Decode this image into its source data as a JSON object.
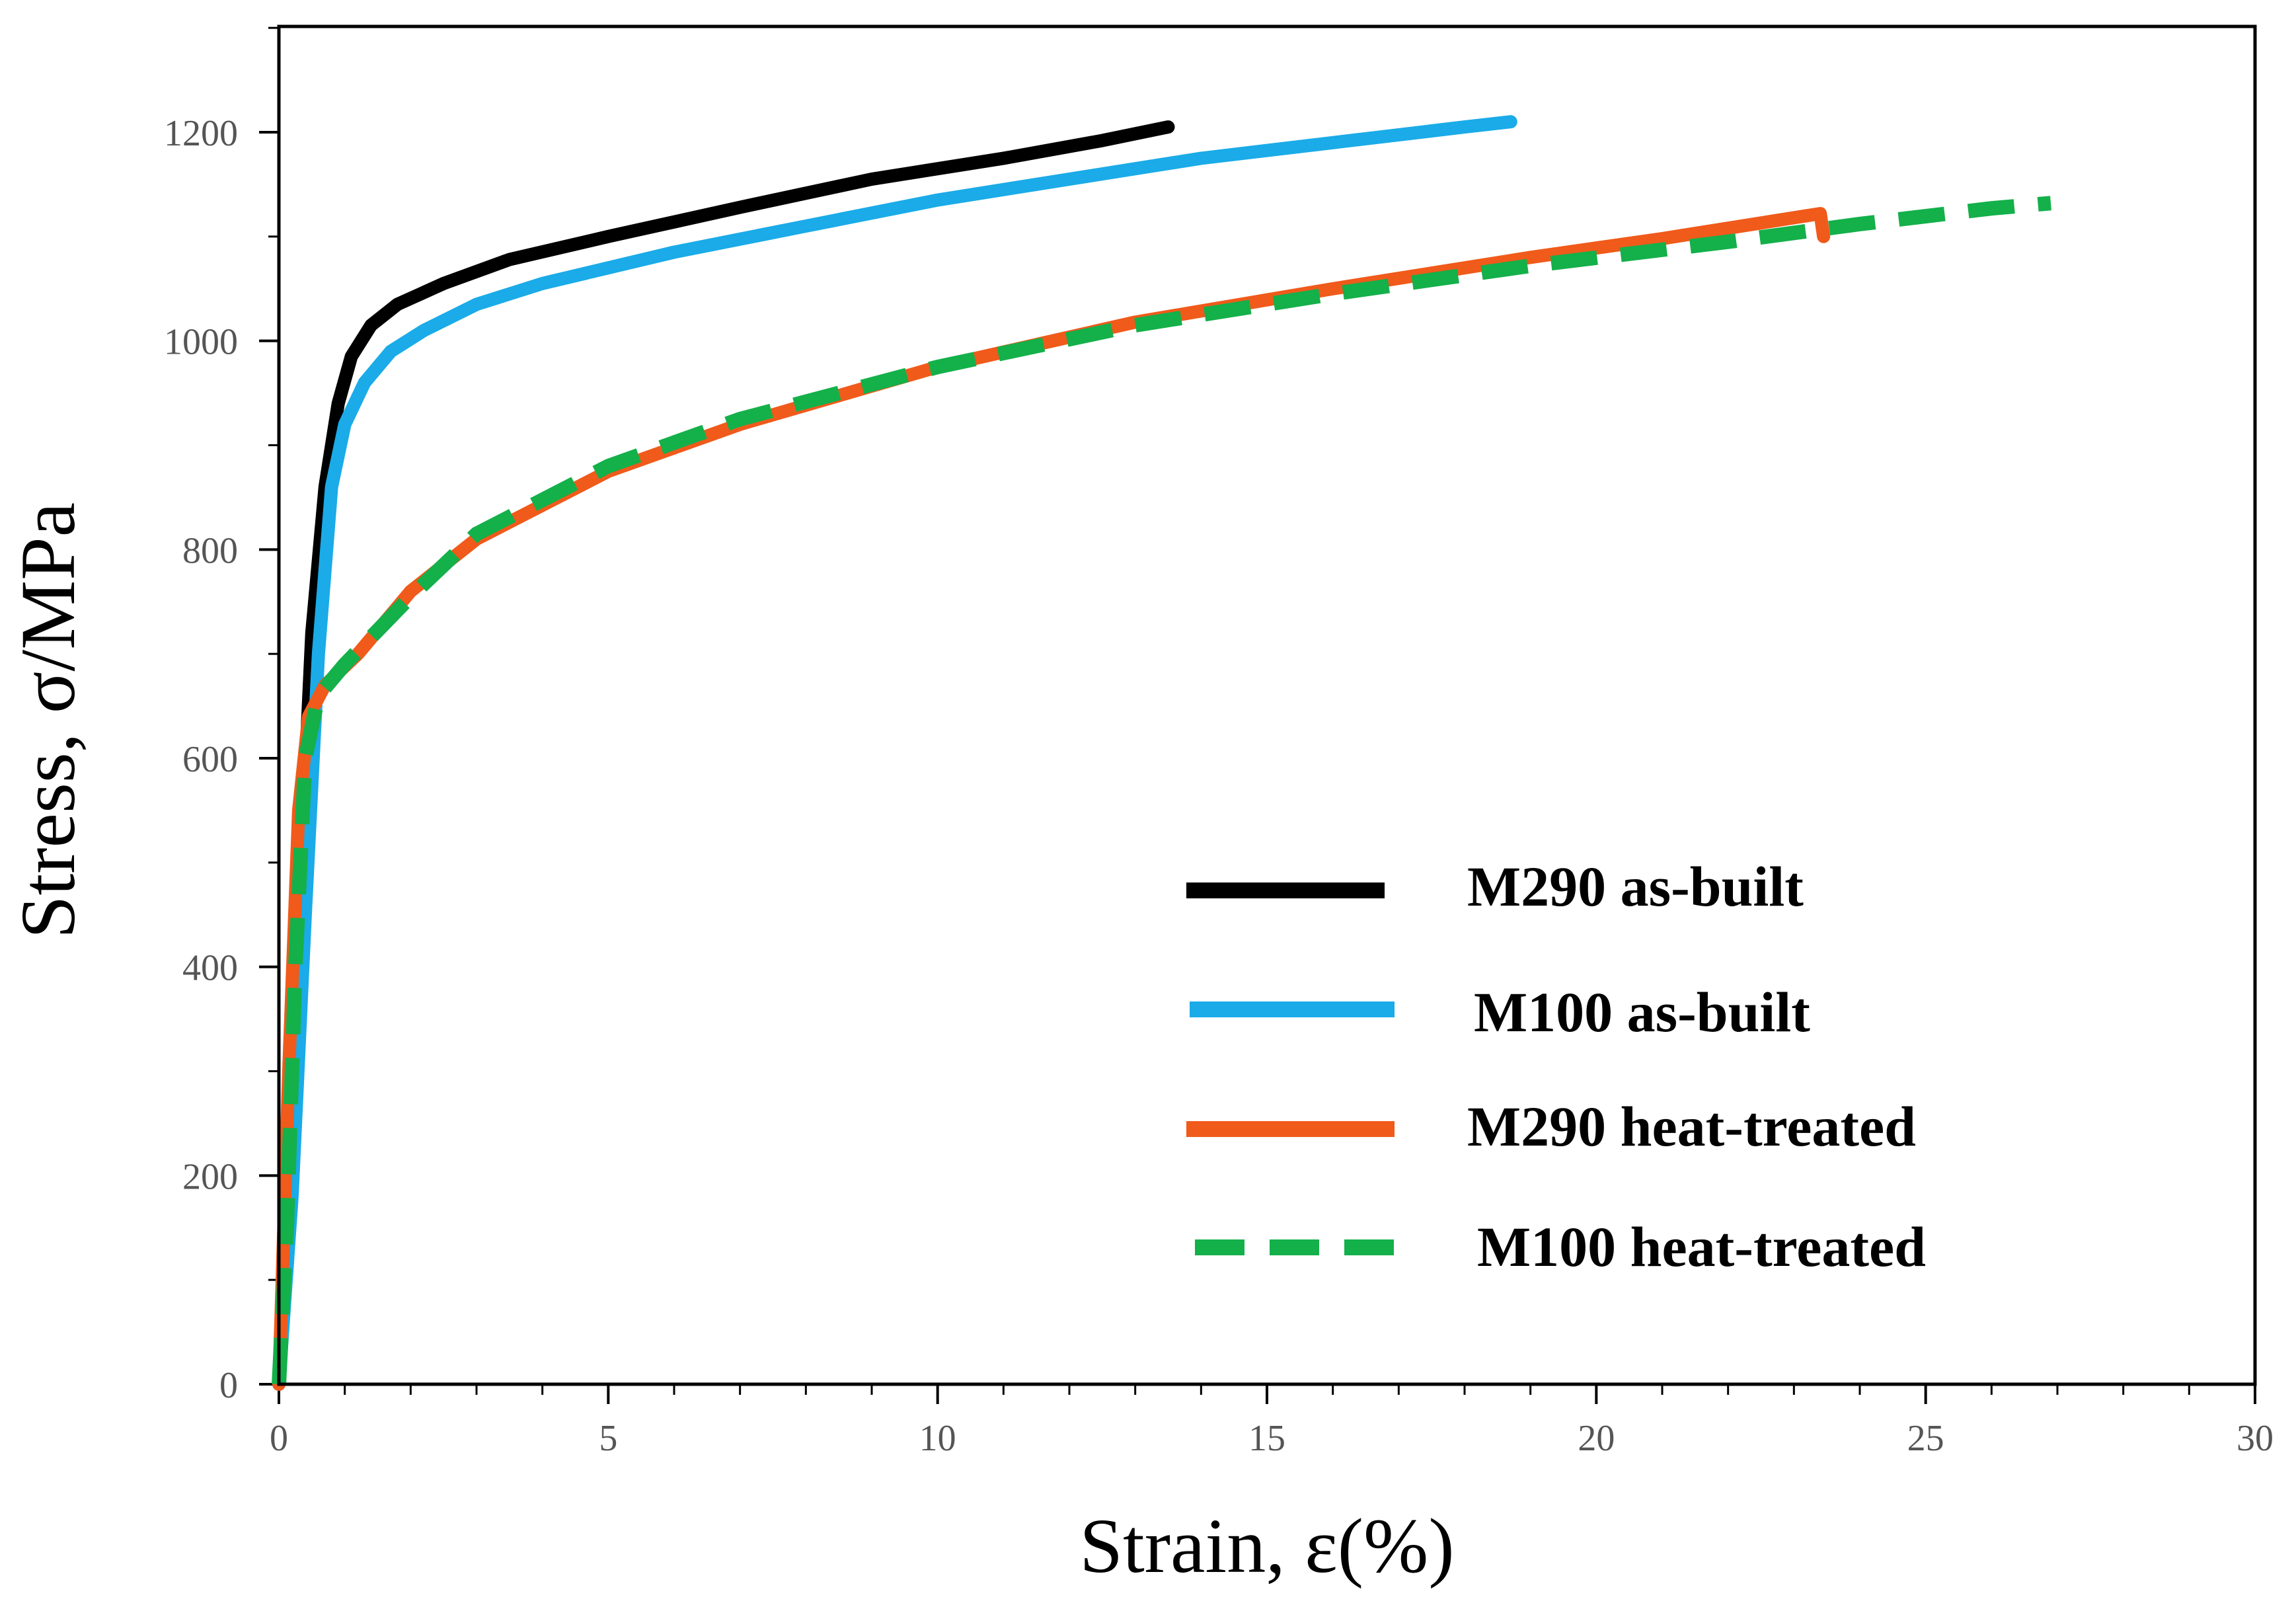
{
  "chart_data": {
    "type": "line",
    "title": "",
    "xlabel": "Strain, ε(%)",
    "ylabel": "Stress, σ/MPa",
    "xlim": [
      0,
      30
    ],
    "ylim": [
      0,
      1300
    ],
    "x_ticks": [
      0,
      5,
      10,
      15,
      20,
      25,
      30
    ],
    "y_ticks": [
      0,
      200,
      400,
      600,
      800,
      1000,
      1200
    ],
    "x_minor_step": 1,
    "y_minor_step": 100,
    "grid": false,
    "legend_position": "bottom-right",
    "series": [
      {
        "name": "M290 as-built",
        "color": "#000000",
        "dash": "solid",
        "points": [
          [
            0,
            0
          ],
          [
            0.2,
            280
          ],
          [
            0.35,
            520
          ],
          [
            0.5,
            720
          ],
          [
            0.7,
            860
          ],
          [
            0.9,
            940
          ],
          [
            1.1,
            985
          ],
          [
            1.4,
            1015
          ],
          [
            1.8,
            1035
          ],
          [
            2.5,
            1055
          ],
          [
            3.5,
            1078
          ],
          [
            5,
            1100
          ],
          [
            7,
            1128
          ],
          [
            9,
            1155
          ],
          [
            11,
            1175
          ],
          [
            12.5,
            1192
          ],
          [
            13.5,
            1205
          ]
        ]
      },
      {
        "name": "M100 as-built",
        "color": "#1aabe8",
        "dash": "solid",
        "points": [
          [
            0,
            0
          ],
          [
            0.2,
            180
          ],
          [
            0.4,
            450
          ],
          [
            0.6,
            700
          ],
          [
            0.8,
            860
          ],
          [
            1.0,
            920
          ],
          [
            1.3,
            960
          ],
          [
            1.7,
            990
          ],
          [
            2.2,
            1010
          ],
          [
            3,
            1035
          ],
          [
            4,
            1055
          ],
          [
            6,
            1085
          ],
          [
            8,
            1110
          ],
          [
            10,
            1135
          ],
          [
            12,
            1155
          ],
          [
            14,
            1175
          ],
          [
            16,
            1190
          ],
          [
            18,
            1205
          ],
          [
            18.7,
            1210
          ]
        ]
      },
      {
        "name": "M290 heat-treated",
        "color": "#f05a1a",
        "dash": "solid",
        "points": [
          [
            0,
            0
          ],
          [
            0.15,
            300
          ],
          [
            0.3,
            550
          ],
          [
            0.45,
            640
          ],
          [
            0.7,
            670
          ],
          [
            1.2,
            700
          ],
          [
            2,
            760
          ],
          [
            3,
            810
          ],
          [
            5,
            875
          ],
          [
            7,
            920
          ],
          [
            10,
            975
          ],
          [
            13,
            1018
          ],
          [
            16,
            1050
          ],
          [
            19,
            1080
          ],
          [
            21,
            1098
          ],
          [
            23,
            1118
          ],
          [
            23.4,
            1122
          ],
          [
            23.45,
            1100
          ]
        ]
      },
      {
        "name": "M100 heat-treated",
        "color": "#14b04a",
        "dash": "dashed",
        "points": [
          [
            0,
            0
          ],
          [
            0.12,
            150
          ],
          [
            0.25,
            400
          ],
          [
            0.4,
            600
          ],
          [
            0.6,
            660
          ],
          [
            1.0,
            690
          ],
          [
            2,
            755
          ],
          [
            3,
            815
          ],
          [
            5,
            880
          ],
          [
            7,
            925
          ],
          [
            10,
            975
          ],
          [
            13,
            1015
          ],
          [
            16,
            1045
          ],
          [
            19,
            1072
          ],
          [
            22,
            1095
          ],
          [
            24,
            1112
          ],
          [
            26,
            1127
          ],
          [
            26.9,
            1132
          ]
        ]
      }
    ]
  }
}
